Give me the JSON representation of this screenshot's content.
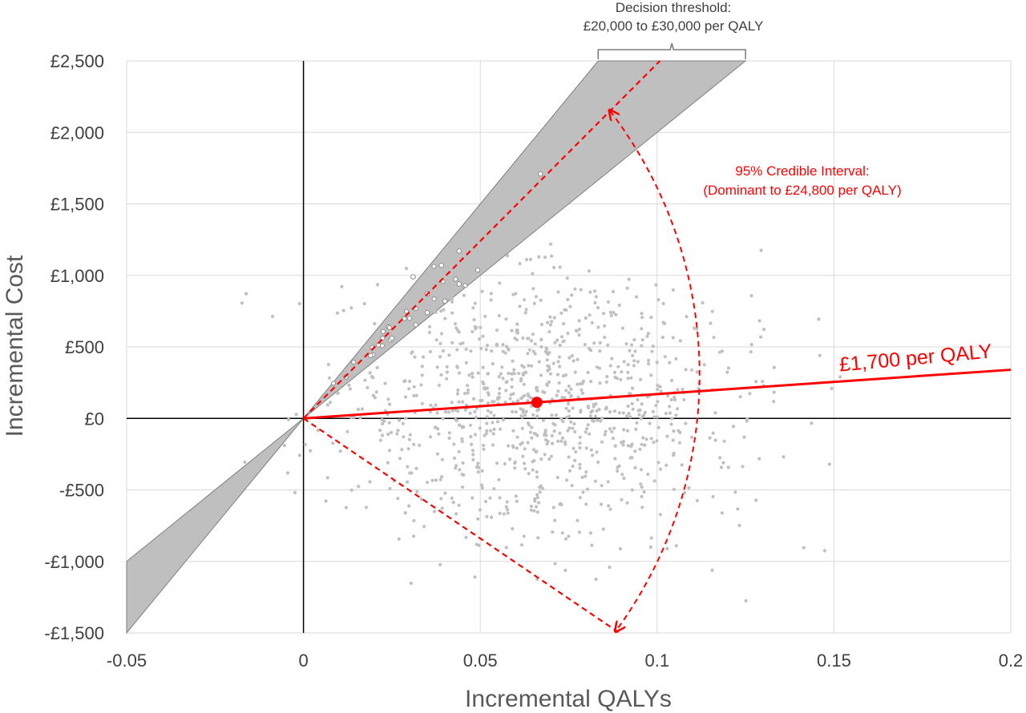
{
  "chart_data": {
    "type": "scatter",
    "title": "",
    "xlabel": "Incremental QALYs",
    "ylabel": "Incremental Cost",
    "xlim": [
      -0.05,
      0.2
    ],
    "ylim": [
      -1500,
      2500
    ],
    "x_ticks": [
      -0.05,
      0,
      0.05,
      0.1,
      0.15,
      0.2
    ],
    "x_tick_labels": [
      "-0.05",
      "0",
      "0.05",
      "0.1",
      "0.15",
      "0.2"
    ],
    "y_ticks": [
      -1500,
      -1000,
      -500,
      0,
      500,
      1000,
      1500,
      2000,
      2500
    ],
    "y_tick_labels": [
      "-£1,500",
      "-£1,000",
      "-£500",
      "£0",
      "£500",
      "£1,000",
      "£1,500",
      "£2,000",
      "£2,500"
    ],
    "grid": true,
    "colors": {
      "samples": "#c0c0c0",
      "threshold_band": "#bfbfbf",
      "highlight": "#ff0000",
      "axis": "#000000"
    },
    "threshold": {
      "label_lines": [
        "Decision threshold:",
        "£20,000 to £30,000 per QALY"
      ],
      "lower_slope": 20000,
      "upper_slope": 30000
    },
    "credible_interval": {
      "label_lines": [
        "95% Credible Interval:",
        "(Dominant to £24,800 per QALY)"
      ],
      "upper_slope": 24800,
      "lower_slope": -16800
    },
    "point_estimate": {
      "x": 0.066,
      "y": 112,
      "icer_slope": 1700,
      "label": "£1,700 per QALY"
    },
    "samples": {
      "count": 1000,
      "x_mean": 0.066,
      "x_sd": 0.029,
      "y_mean": 115,
      "y_sd": 440,
      "correlation": 0.05,
      "x_range": [
        -0.025,
        0.18
      ],
      "y_range": [
        -1450,
        2450
      ],
      "seed": 20240517
    }
  }
}
